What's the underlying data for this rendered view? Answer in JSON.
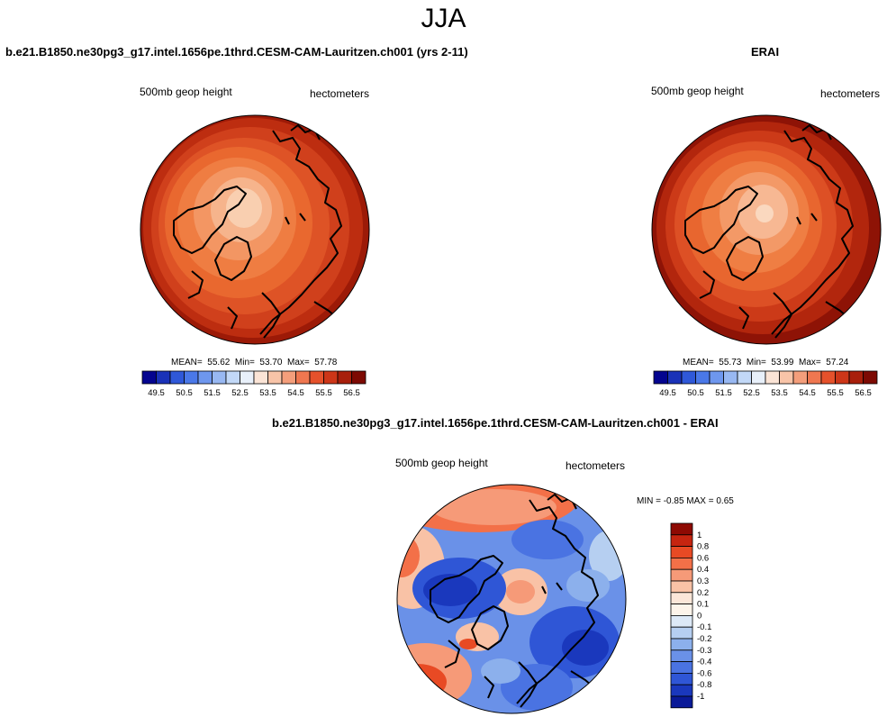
{
  "title": "JJA",
  "panel_left": {
    "header": "b.e21.B1850.ne30pg3_g17.intel.1656pe.1thrd.CESM-CAM-Lauritzen.ch001 (yrs 2-11)",
    "left_label": "500mb geop height",
    "right_label": "hectometers",
    "mean_label": "MEAN=",
    "mean": "55.62",
    "min_label": "Min=",
    "min": "53.70",
    "max_label": "Max=",
    "max": "57.78"
  },
  "panel_right": {
    "header": "ERAI",
    "left_label": "500mb geop height",
    "right_label": "hectometers",
    "mean_label": "MEAN=",
    "mean": "55.73",
    "min_label": "Min=",
    "min": "53.99",
    "max_label": "Max=",
    "max": "57.24"
  },
  "panel_diff": {
    "header": "b.e21.B1850.ne30pg3_g17.intel.1656pe.1thrd.CESM-CAM-Lauritzen.ch001 - ERAI",
    "left_label": "500mb geop height",
    "right_label": "hectometers",
    "minmax_text": "MIN =  -0.85 MAX =   0.65"
  },
  "abs_colorbar": {
    "colors": [
      "#04048f",
      "#1a32b8",
      "#2f58d8",
      "#4a78e8",
      "#6e97ee",
      "#98b8f2",
      "#c2d8f7",
      "#e8f0fa",
      "#fbe4d6",
      "#f8c4a8",
      "#f49e7b",
      "#ef7750",
      "#e5512b",
      "#cd3618",
      "#a81f0b",
      "#7d0a03"
    ],
    "tick_labels": [
      "49.5",
      "50.5",
      "51.5",
      "52.5",
      "53.5",
      "54.5",
      "55.5",
      "56.5"
    ]
  },
  "diff_colorbar": {
    "colors": [
      "#8e0a03",
      "#c62510",
      "#e84a24",
      "#f37048",
      "#f69a78",
      "#f9c2a6",
      "#fbe6d8",
      "#fdf4ea",
      "#dde9f7",
      "#b6cff1",
      "#8cb0ec",
      "#6a91e8",
      "#4a73e2",
      "#2f56d6",
      "#1a38bd",
      "#0a1a98"
    ],
    "tick_labels": [
      "1",
      "0.8",
      "0.6",
      "0.4",
      "0.3",
      "0.2",
      "0.1",
      "0",
      "-0.1",
      "-0.2",
      "-0.3",
      "-0.4",
      "-0.6",
      "-0.8",
      "-1"
    ]
  }
}
